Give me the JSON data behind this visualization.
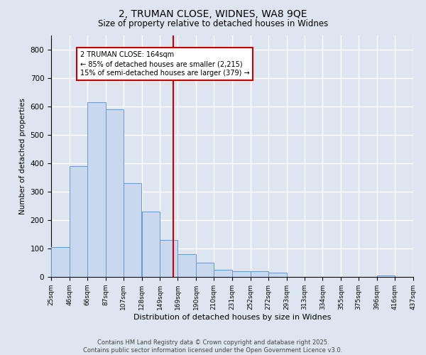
{
  "title1": "2, TRUMAN CLOSE, WIDNES, WA8 9QE",
  "title2": "Size of property relative to detached houses in Widnes",
  "xlabel": "Distribution of detached houses by size in Widnes",
  "ylabel": "Number of detached properties",
  "bar_color": "#c8d9ef",
  "bar_edge_color": "#6699cc",
  "background_color": "#dde6f0",
  "grid_color": "#ffffff",
  "vline_color": "#cc0000",
  "vline_x": 164,
  "annotation_text": "2 TRUMAN CLOSE: 164sqm\n← 85% of detached houses are smaller (2,215)\n15% of semi-detached houses are larger (379) →",
  "annotation_box_color": "#ffffff",
  "annotation_border_color": "#cc0000",
  "bins": [
    25,
    46,
    66,
    87,
    107,
    128,
    149,
    169,
    190,
    210,
    231,
    252,
    272,
    293,
    313,
    334,
    355,
    375,
    396,
    416,
    437
  ],
  "counts": [
    105,
    390,
    615,
    590,
    330,
    230,
    130,
    80,
    50,
    25,
    20,
    20,
    15,
    0,
    0,
    0,
    0,
    0,
    5,
    0
  ],
  "ylim": [
    0,
    850
  ],
  "yticks": [
    0,
    100,
    200,
    300,
    400,
    500,
    600,
    700,
    800
  ],
  "footer1": "Contains HM Land Registry data © Crown copyright and database right 2025.",
  "footer2": "Contains public sector information licensed under the Open Government Licence v3.0."
}
